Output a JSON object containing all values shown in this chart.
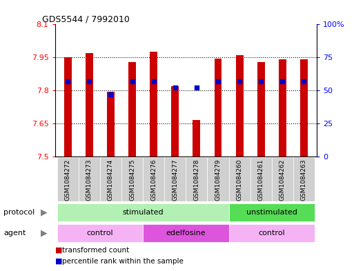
{
  "title": "GDS5544 / 7992010",
  "samples": [
    "GSM1084272",
    "GSM1084273",
    "GSM1084274",
    "GSM1084275",
    "GSM1084276",
    "GSM1084277",
    "GSM1084278",
    "GSM1084279",
    "GSM1084260",
    "GSM1084261",
    "GSM1084262",
    "GSM1084263"
  ],
  "transformed_count": [
    7.95,
    7.97,
    7.795,
    7.93,
    7.975,
    7.82,
    7.665,
    7.945,
    7.96,
    7.93,
    7.94,
    7.94
  ],
  "percentile_rank": [
    57,
    57,
    47,
    57,
    57,
    52,
    52,
    57,
    57,
    57,
    57,
    57
  ],
  "ylim_left": [
    7.5,
    8.1
  ],
  "ylim_right": [
    0,
    100
  ],
  "yticks_left": [
    7.5,
    7.65,
    7.8,
    7.95,
    8.1
  ],
  "yticks_right": [
    0,
    25,
    50,
    75,
    100
  ],
  "ytick_labels_right": [
    "0",
    "25",
    "50",
    "75",
    "100%"
  ],
  "bar_color": "#cc0000",
  "dot_color": "#0000cc",
  "bar_bottom": 7.5,
  "stim_color": "#b3f0b3",
  "unstim_color": "#55dd55",
  "agent_ctrl_color": "#f5b3f5",
  "agent_edel_color": "#dd55dd",
  "sample_bg_color": "#d0d0d0",
  "legend_red": "transformed count",
  "legend_blue": "percentile rank within the sample"
}
